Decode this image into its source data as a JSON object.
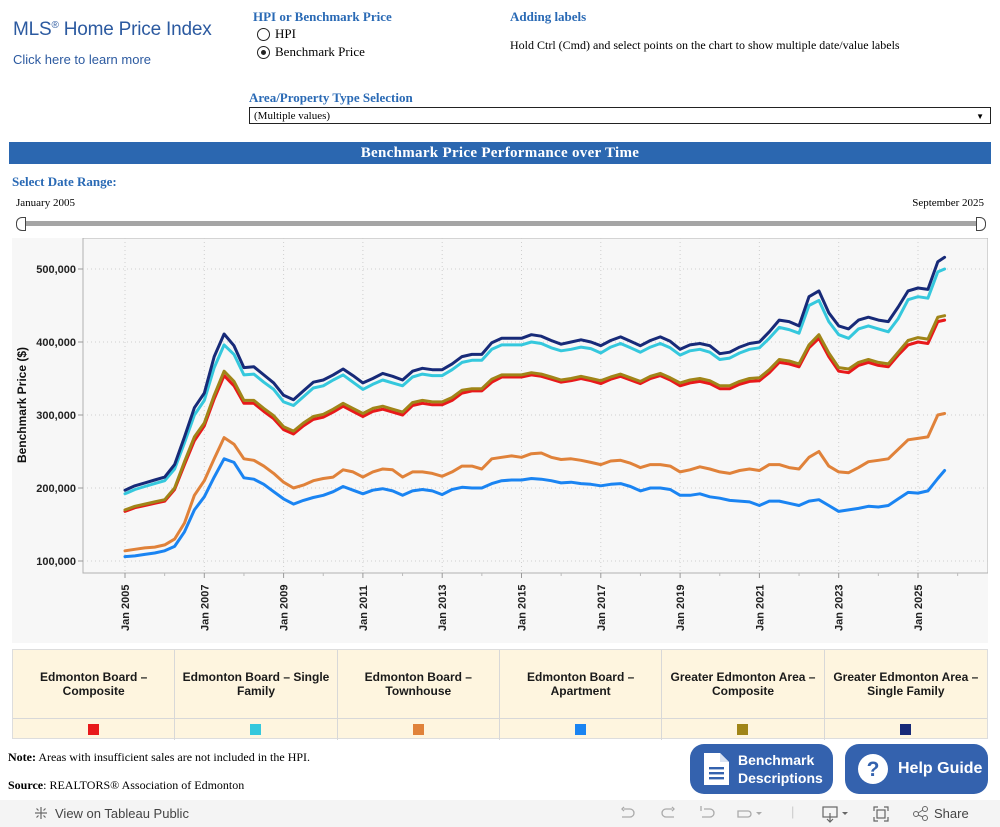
{
  "header": {
    "brand_title": "MLS",
    "brand_reg": "®",
    "brand_title_rest": " Home Price Index",
    "learn_more_link": "Click here to learn more"
  },
  "measure_selector": {
    "heading": "HPI or Benchmark Price",
    "options": [
      {
        "label": "HPI",
        "selected": false
      },
      {
        "label": "Benchmark Price",
        "selected": true
      }
    ]
  },
  "labels_help": {
    "heading": "Adding labels",
    "text": "Hold Ctrl (Cmd) and select points on the chart to show multiple date/value labels"
  },
  "area_selector": {
    "heading": "Area/Property Type Selection",
    "value": "(Multiple values)",
    "arrow": "▼"
  },
  "banner_title": "Benchmark Price Performance over Time",
  "date_range": {
    "heading": "Select Date Range:",
    "start": "January 2005",
    "end": "September 2025"
  },
  "chart_data": {
    "type": "line",
    "title": "Benchmark Price Performance over Time",
    "xlabel": "",
    "ylabel": "Benchmark Price ($)",
    "ylim": [
      88000,
      546000
    ],
    "xlim": [
      2004.5,
      2026.75
    ],
    "yticks": [
      100000,
      200000,
      300000,
      400000,
      500000
    ],
    "ytick_labels": [
      "100,000",
      "200,000",
      "300,000",
      "400,000",
      "500,000"
    ],
    "xticks": [
      2005,
      2007,
      2009,
      2011,
      2013,
      2015,
      2017,
      2019,
      2021,
      2023,
      2025
    ],
    "xtick_labels": [
      "Jan 2005",
      "Jan 2007",
      "Jan 2009",
      "Jan 2011",
      "Jan 2013",
      "Jan 2015",
      "Jan 2017",
      "Jan 2019",
      "Jan 2021",
      "Jan 2023",
      "Jan 2025"
    ],
    "grid": true,
    "legend_position": "bottom",
    "x": [
      2005.0,
      2005.25,
      2005.5,
      2005.75,
      2006.0,
      2006.25,
      2006.5,
      2006.75,
      2007.0,
      2007.25,
      2007.5,
      2007.75,
      2008.0,
      2008.25,
      2008.5,
      2008.75,
      2009.0,
      2009.25,
      2009.5,
      2009.75,
      2010.0,
      2010.25,
      2010.5,
      2010.75,
      2011.0,
      2011.25,
      2011.5,
      2011.75,
      2012.0,
      2012.25,
      2012.5,
      2012.75,
      2013.0,
      2013.25,
      2013.5,
      2013.75,
      2014.0,
      2014.25,
      2014.5,
      2014.75,
      2015.0,
      2015.25,
      2015.5,
      2015.75,
      2016.0,
      2016.25,
      2016.5,
      2016.75,
      2017.0,
      2017.25,
      2017.5,
      2017.75,
      2018.0,
      2018.25,
      2018.5,
      2018.75,
      2019.0,
      2019.25,
      2019.5,
      2019.75,
      2020.0,
      2020.25,
      2020.5,
      2020.75,
      2021.0,
      2021.25,
      2021.5,
      2021.75,
      2022.0,
      2022.25,
      2022.5,
      2022.75,
      2023.0,
      2023.25,
      2023.5,
      2023.75,
      2024.0,
      2024.25,
      2024.5,
      2024.75,
      2025.0,
      2025.25,
      2025.5,
      2025.67
    ],
    "series": [
      {
        "name": "Edmonton Board – Composite",
        "color": "#e8191b",
        "values": [
          168000,
          173000,
          176000,
          179000,
          182000,
          198000,
          232000,
          265000,
          285000,
          322000,
          354000,
          340000,
          316000,
          316000,
          305000,
          295000,
          280000,
          274000,
          285000,
          294000,
          297000,
          304000,
          312000,
          305000,
          298000,
          305000,
          308000,
          304000,
          300000,
          313000,
          316000,
          314000,
          314000,
          320000,
          330000,
          333000,
          333000,
          345000,
          352000,
          352000,
          352000,
          355000,
          353000,
          349000,
          345000,
          347000,
          350000,
          347000,
          343000,
          349000,
          353000,
          348000,
          343000,
          350000,
          354000,
          348000,
          340000,
          344000,
          346000,
          343000,
          336000,
          336000,
          342000,
          346000,
          347000,
          358000,
          372000,
          370000,
          366000,
          392000,
          405000,
          380000,
          360000,
          358000,
          368000,
          372000,
          368000,
          366000,
          382000,
          396000,
          400000,
          398000,
          428000,
          430000,
          420000,
          418000
        ]
      },
      {
        "name": "Edmonton Board – Single Family",
        "color": "#35c8dd",
        "values": [
          192000,
          198000,
          202000,
          206000,
          210000,
          226000,
          262000,
          300000,
          320000,
          365000,
          396000,
          383000,
          355000,
          356000,
          345000,
          335000,
          318000,
          313000,
          325000,
          337000,
          340000,
          348000,
          355000,
          345000,
          335000,
          342000,
          348000,
          344000,
          340000,
          352000,
          356000,
          354000,
          354000,
          362000,
          372000,
          375000,
          375000,
          390000,
          396000,
          396000,
          396000,
          400000,
          398000,
          392000,
          388000,
          390000,
          393000,
          391000,
          385000,
          393000,
          398000,
          392000,
          386000,
          393000,
          398000,
          392000,
          382000,
          388000,
          390000,
          386000,
          376000,
          378000,
          385000,
          390000,
          392000,
          405000,
          420000,
          417000,
          412000,
          450000,
          457000,
          428000,
          410000,
          405000,
          418000,
          422000,
          418000,
          414000,
          432000,
          458000,
          462000,
          460000,
          496000,
          500000,
          500000,
          495000
        ]
      },
      {
        "name": "Edmonton Board – Townhouse",
        "color": "#e0823a",
        "values": [
          114000,
          116000,
          118000,
          119000,
          122000,
          130000,
          152000,
          190000,
          210000,
          240000,
          269000,
          260000,
          240000,
          238000,
          230000,
          220000,
          208000,
          200000,
          204000,
          210000,
          213000,
          215000,
          225000,
          222000,
          215000,
          222000,
          226000,
          225000,
          215000,
          222000,
          222000,
          220000,
          216000,
          222000,
          230000,
          230000,
          226000,
          240000,
          242000,
          244000,
          242000,
          247000,
          248000,
          242000,
          239000,
          240000,
          238000,
          235000,
          232000,
          237000,
          238000,
          234000,
          228000,
          232000,
          232000,
          230000,
          222000,
          225000,
          229000,
          226000,
          222000,
          220000,
          224000,
          226000,
          224000,
          232000,
          232000,
          228000,
          226000,
          242000,
          250000,
          230000,
          222000,
          221000,
          228000,
          236000,
          238000,
          240000,
          253000,
          266000,
          268000,
          270000,
          300000,
          302000,
          285000,
          283000
        ]
      },
      {
        "name": "Edmonton Board – Apartment",
        "color": "#1a84f2",
        "values": [
          106000,
          107000,
          109000,
          111000,
          114000,
          120000,
          140000,
          170000,
          188000,
          215000,
          240000,
          235000,
          214000,
          212000,
          205000,
          195000,
          185000,
          178000,
          183000,
          187000,
          190000,
          195000,
          202000,
          197000,
          192000,
          197000,
          199000,
          196000,
          190000,
          196000,
          198000,
          196000,
          191000,
          198000,
          201000,
          200000,
          200000,
          206000,
          210000,
          211000,
          211000,
          213000,
          212000,
          210000,
          207000,
          208000,
          206000,
          205000,
          203000,
          205000,
          206000,
          202000,
          196000,
          200000,
          200000,
          198000,
          190000,
          190000,
          192000,
          188000,
          186000,
          183000,
          182000,
          181000,
          176000,
          182000,
          182000,
          179000,
          176000,
          182000,
          184000,
          176000,
          168000,
          170000,
          172000,
          175000,
          174000,
          176000,
          185000,
          194000,
          193000,
          196000,
          213000,
          224000,
          201000,
          199000
        ]
      },
      {
        "name": "Greater Edmonton Area – Composite",
        "color": "#a08518",
        "values": [
          170000,
          175000,
          178000,
          181000,
          184000,
          200000,
          236000,
          270000,
          289000,
          327000,
          360000,
          346000,
          320000,
          320000,
          309000,
          299000,
          284000,
          278000,
          289000,
          298000,
          301000,
          308000,
          316000,
          309000,
          302000,
          309000,
          312000,
          308000,
          304000,
          317000,
          320000,
          318000,
          318000,
          324000,
          334000,
          336000,
          336000,
          349000,
          355000,
          355000,
          355000,
          358000,
          356000,
          352000,
          348000,
          350000,
          353000,
          350000,
          347000,
          352000,
          356000,
          351000,
          346000,
          353000,
          357000,
          351000,
          344000,
          348000,
          350000,
          347000,
          340000,
          340000,
          346000,
          350000,
          351000,
          362000,
          376000,
          374000,
          370000,
          396000,
          410000,
          385000,
          365000,
          363000,
          372000,
          376000,
          372000,
          370000,
          386000,
          402000,
          406000,
          404000,
          434000,
          436000,
          426000,
          424000
        ]
      },
      {
        "name": "Greater Edmonton Area – Single Family",
        "color": "#172a78",
        "values": [
          197000,
          203000,
          207000,
          211000,
          215000,
          232000,
          270000,
          310000,
          330000,
          380000,
          411000,
          395000,
          365000,
          366000,
          355000,
          344000,
          327000,
          321000,
          333000,
          345000,
          348000,
          355000,
          363000,
          354000,
          344000,
          350000,
          357000,
          353000,
          348000,
          360000,
          364000,
          362000,
          362000,
          370000,
          380000,
          383000,
          383000,
          399000,
          405000,
          405000,
          405000,
          410000,
          408000,
          402000,
          397000,
          400000,
          403000,
          400000,
          395000,
          402000,
          407000,
          401000,
          395000,
          402000,
          407000,
          401000,
          390000,
          396000,
          398000,
          395000,
          384000,
          386000,
          393000,
          398000,
          400000,
          414000,
          430000,
          428000,
          422000,
          462000,
          470000,
          440000,
          422000,
          418000,
          430000,
          434000,
          430000,
          428000,
          448000,
          470000,
          474000,
          472000,
          510000,
          516000,
          518000,
          513000
        ]
      }
    ]
  },
  "legend": {
    "items": [
      {
        "label": "Edmonton Board – Composite",
        "color": "#e8191b"
      },
      {
        "label": "Edmonton Board – Single Family",
        "color": "#35c8dd"
      },
      {
        "label": "Edmonton Board – Townhouse",
        "color": "#e0823a"
      },
      {
        "label": "Edmonton Board – Apartment",
        "color": "#1a84f2"
      },
      {
        "label": "Greater Edmonton Area – Composite",
        "color": "#a08518"
      },
      {
        "label": "Greater Edmonton Area – Single Family",
        "color": "#172a78"
      }
    ]
  },
  "footer": {
    "note_label": "Note:",
    "note_text": " Areas with insufficient sales are not included in the HPI.",
    "source_label": "Source",
    "source_text": ": REALTORS® Association of Edmonton",
    "benchmark_button": "Benchmark Descriptions",
    "benchmark_line1": "Benchmark",
    "benchmark_line2": "Descriptions",
    "help_button": "Help Guide"
  },
  "toolbar": {
    "view_on_tableau": "View on Tableau Public",
    "share": "Share"
  }
}
